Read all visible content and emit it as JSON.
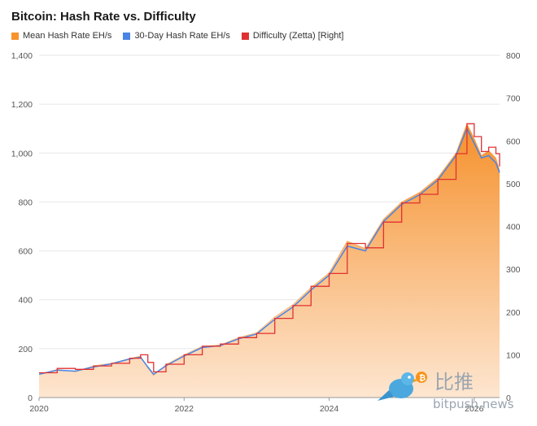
{
  "chart_data": {
    "type": "area",
    "title": "Bitcoin: Hash Rate vs. Difficulty",
    "legend_position": "top-left",
    "grid": true,
    "x_axis": {
      "min": 2020,
      "max": 2026.35,
      "ticks": [
        "2020",
        "2022",
        "2024",
        "2026"
      ]
    },
    "y_left": {
      "min": 0,
      "max": 1400,
      "ticks": [
        "0",
        "200",
        "400",
        "600",
        "800",
        "1,000",
        "1,200",
        "1,400"
      ]
    },
    "y_right": {
      "min": 0,
      "max": 800,
      "ticks": [
        "0",
        "100",
        "200",
        "300",
        "400",
        "500",
        "600",
        "700",
        "800"
      ]
    },
    "series": [
      {
        "name": "Mean Hash Rate EH/s",
        "color": "#f7922d",
        "axis": "left",
        "style": "area",
        "x": [
          2020.0,
          2020.25,
          2020.5,
          2020.75,
          2021.0,
          2021.25,
          2021.4,
          2021.5,
          2021.58,
          2021.75,
          2022.0,
          2022.25,
          2022.5,
          2022.75,
          2023.0,
          2023.25,
          2023.5,
          2023.75,
          2024.0,
          2024.25,
          2024.5,
          2024.75,
          2025.0,
          2025.25,
          2025.5,
          2025.75,
          2025.9,
          2026.0,
          2026.1,
          2026.2,
          2026.3,
          2026.35
        ],
        "values": [
          95,
          115,
          105,
          130,
          140,
          160,
          170,
          120,
          90,
          135,
          175,
          210,
          215,
          245,
          265,
          330,
          380,
          450,
          510,
          640,
          610,
          730,
          800,
          840,
          900,
          1000,
          1120,
          1060,
          990,
          1010,
          980,
          930
        ]
      },
      {
        "name": "30-Day Hash Rate EH/s",
        "color": "#4a84e6",
        "axis": "left",
        "style": "line",
        "x": [
          2020.0,
          2020.25,
          2020.5,
          2020.75,
          2021.0,
          2021.25,
          2021.4,
          2021.5,
          2021.58,
          2021.75,
          2022.0,
          2022.25,
          2022.5,
          2022.75,
          2023.0,
          2023.25,
          2023.5,
          2023.75,
          2024.0,
          2024.25,
          2024.5,
          2024.75,
          2025.0,
          2025.25,
          2025.5,
          2025.75,
          2025.9,
          2026.0,
          2026.1,
          2026.2,
          2026.3,
          2026.35
        ],
        "values": [
          95,
          112,
          108,
          125,
          138,
          158,
          165,
          125,
          95,
          130,
          170,
          205,
          212,
          240,
          260,
          320,
          370,
          440,
          500,
          620,
          600,
          720,
          790,
          830,
          890,
          990,
          1100,
          1040,
          980,
          990,
          960,
          920
        ]
      },
      {
        "name": "Difficulty (Zetta) [Right]",
        "color": "#e03131",
        "axis": "right",
        "style": "step",
        "x": [
          2020.0,
          2020.25,
          2020.5,
          2020.75,
          2021.0,
          2021.25,
          2021.4,
          2021.5,
          2021.58,
          2021.75,
          2022.0,
          2022.25,
          2022.5,
          2022.75,
          2023.0,
          2023.25,
          2023.5,
          2023.75,
          2024.0,
          2024.25,
          2024.5,
          2024.75,
          2025.0,
          2025.25,
          2025.5,
          2025.75,
          2025.9,
          2026.0,
          2026.1,
          2026.2,
          2026.3,
          2026.35
        ],
        "values": [
          58,
          68,
          66,
          74,
          80,
          92,
          100,
          82,
          60,
          78,
          100,
          120,
          125,
          140,
          150,
          185,
          215,
          260,
          290,
          360,
          350,
          410,
          455,
          475,
          510,
          570,
          640,
          610,
          575,
          585,
          570,
          540
        ]
      }
    ]
  },
  "watermark": {
    "logo": "bitpush-bird",
    "chinese": "比推",
    "latin": "bitpush.news"
  }
}
